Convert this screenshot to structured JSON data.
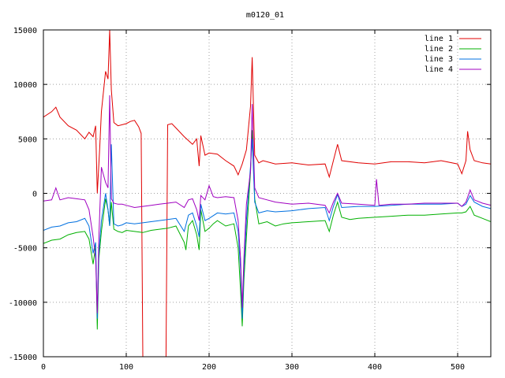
{
  "chart_data": {
    "type": "line",
    "title": "m0120_01",
    "xlabel": "",
    "ylabel": "",
    "xlim": [
      0,
      540
    ],
    "ylim": [
      -15000,
      15000
    ],
    "xticks": [
      0,
      100,
      200,
      300,
      400,
      500
    ],
    "yticks": [
      -15000,
      -10000,
      -5000,
      0,
      5000,
      10000,
      15000
    ],
    "grid": true,
    "legend_position": "top-right",
    "series": [
      {
        "name": "line 1",
        "color": "#e00000",
        "x": [
          0,
          10,
          15,
          20,
          30,
          40,
          50,
          55,
          60,
          63,
          65,
          68,
          70,
          75,
          78,
          80,
          82,
          85,
          90,
          95,
          100,
          105,
          110,
          115,
          118,
          120,
          125,
          130,
          140,
          145,
          148,
          150,
          155,
          160,
          170,
          180,
          185,
          188,
          190,
          195,
          200,
          210,
          220,
          230,
          235,
          240,
          245,
          250,
          252,
          255,
          260,
          265,
          280,
          300,
          320,
          340,
          345,
          350,
          355,
          360,
          380,
          400,
          420,
          440,
          460,
          480,
          500,
          505,
          510,
          512,
          515,
          520,
          530,
          540
        ],
        "values": [
          7000,
          7500,
          7900,
          7000,
          6200,
          5800,
          5000,
          5600,
          5200,
          6200,
          0,
          4200,
          7500,
          11200,
          10500,
          15000,
          9500,
          6500,
          6200,
          6300,
          6400,
          6600,
          6700,
          6100,
          5500,
          -15000,
          -15000,
          -15000,
          -15000,
          -15000,
          -15000,
          6300,
          6400,
          6000,
          5200,
          4500,
          5000,
          2500,
          5300,
          3500,
          3700,
          3600,
          3000,
          2500,
          1700,
          2700,
          4000,
          8000,
          12500,
          3500,
          2800,
          3000,
          2700,
          2800,
          2600,
          2700,
          1500,
          3000,
          4500,
          3000,
          2800,
          2700,
          2900,
          2900,
          2800,
          3000,
          2700,
          1800,
          3000,
          5700,
          4000,
          3000,
          2800,
          2700
        ]
      },
      {
        "name": "line 2",
        "color": "#00b000",
        "x": [
          0,
          10,
          20,
          30,
          40,
          50,
          55,
          60,
          63,
          65,
          67,
          70,
          75,
          78,
          80,
          82,
          85,
          90,
          95,
          100,
          110,
          120,
          130,
          140,
          150,
          160,
          170,
          172,
          175,
          180,
          185,
          188,
          190,
          195,
          200,
          205,
          210,
          220,
          230,
          235,
          238,
          240,
          242,
          245,
          250,
          252,
          255,
          260,
          270,
          280,
          290,
          300,
          320,
          340,
          345,
          350,
          355,
          360,
          370,
          380,
          400,
          420,
          440,
          460,
          480,
          500,
          505,
          510,
          515,
          520,
          530,
          540
        ],
        "values": [
          -4600,
          -4300,
          -4200,
          -3800,
          -3600,
          -3500,
          -4200,
          -6500,
          -4800,
          -12500,
          -6000,
          -3500,
          -500,
          -1500,
          -3000,
          -800,
          -3300,
          -3500,
          -3600,
          -3400,
          -3500,
          -3600,
          -3400,
          -3300,
          -3200,
          -3000,
          -4500,
          -5200,
          -3000,
          -2500,
          -3800,
          -5200,
          -1500,
          -3500,
          -3200,
          -2800,
          -2500,
          -3000,
          -2800,
          -5000,
          -9000,
          -12200,
          -8000,
          -4000,
          2000,
          5800,
          -500,
          -2800,
          -2600,
          -3000,
          -2800,
          -2700,
          -2600,
          -2500,
          -3500,
          -2000,
          -800,
          -2200,
          -2400,
          -2300,
          -2200,
          -2100,
          -2000,
          -2000,
          -1900,
          -1800,
          -1800,
          -1700,
          -1200,
          -2000,
          -2300,
          -2600
        ]
      },
      {
        "name": "line 3",
        "color": "#0070e0",
        "x": [
          0,
          10,
          20,
          30,
          40,
          50,
          55,
          60,
          63,
          65,
          67,
          70,
          75,
          78,
          80,
          82,
          85,
          90,
          95,
          100,
          110,
          120,
          130,
          140,
          150,
          160,
          170,
          175,
          180,
          185,
          188,
          190,
          195,
          200,
          210,
          220,
          230,
          235,
          238,
          240,
          242,
          245,
          250,
          252,
          255,
          260,
          270,
          280,
          300,
          320,
          340,
          345,
          350,
          355,
          360,
          380,
          400,
          420,
          440,
          460,
          480,
          500,
          505,
          510,
          515,
          520,
          530,
          540
        ],
        "values": [
          -3400,
          -3100,
          -3000,
          -2700,
          -2600,
          -2300,
          -3000,
          -5500,
          -4500,
          -11500,
          -5500,
          -2500,
          0,
          -1500,
          -3000,
          4500,
          -2800,
          -3000,
          -2900,
          -2700,
          -2800,
          -2700,
          -2600,
          -2500,
          -2400,
          -2300,
          -3500,
          -2000,
          -1800,
          -3000,
          -4000,
          -1000,
          -2500,
          -2300,
          -1800,
          -1900,
          -1800,
          -3500,
          -7000,
          -11500,
          -7000,
          -2500,
          2500,
          5000,
          -800,
          -1800,
          -1600,
          -1700,
          -1600,
          -1400,
          -1300,
          -2500,
          -1200,
          -100,
          -1300,
          -1200,
          -1200,
          -1100,
          -1000,
          -1000,
          -1000,
          -900,
          -1200,
          -1000,
          -200,
          -800,
          -1200,
          -1400
        ]
      },
      {
        "name": "line 4",
        "color": "#a000c0",
        "x": [
          0,
          10,
          15,
          20,
          30,
          40,
          50,
          55,
          60,
          63,
          65,
          67,
          70,
          75,
          78,
          80,
          82,
          85,
          90,
          95,
          100,
          110,
          120,
          130,
          140,
          150,
          160,
          170,
          175,
          180,
          185,
          188,
          190,
          195,
          200,
          205,
          210,
          220,
          230,
          235,
          238,
          240,
          242,
          245,
          250,
          252,
          255,
          260,
          270,
          280,
          300,
          320,
          340,
          345,
          350,
          355,
          360,
          380,
          400,
          402,
          405,
          420,
          440,
          460,
          480,
          500,
          505,
          510,
          515,
          520,
          530,
          540
        ],
        "values": [
          -700,
          -600,
          500,
          -600,
          -400,
          -500,
          -600,
          -1500,
          -4000,
          -6000,
          -11000,
          -4000,
          2400,
          1000,
          500,
          9000,
          -500,
          -900,
          -1000,
          -1000,
          -1100,
          -1300,
          -1200,
          -1100,
          -1000,
          -900,
          -800,
          -1300,
          -600,
          -500,
          -1500,
          -2500,
          -200,
          -600,
          700,
          -300,
          -400,
          -300,
          -400,
          -2500,
          -6000,
          -10500,
          -6000,
          -1000,
          2000,
          8200,
          500,
          -400,
          -600,
          -800,
          -1000,
          -900,
          -1100,
          -1800,
          -800,
          0,
          -900,
          -1000,
          -1100,
          1300,
          -1100,
          -1000,
          -1000,
          -900,
          -900,
          -900,
          -1200,
          -800,
          300,
          -600,
          -900,
          -1100
        ]
      }
    ]
  }
}
